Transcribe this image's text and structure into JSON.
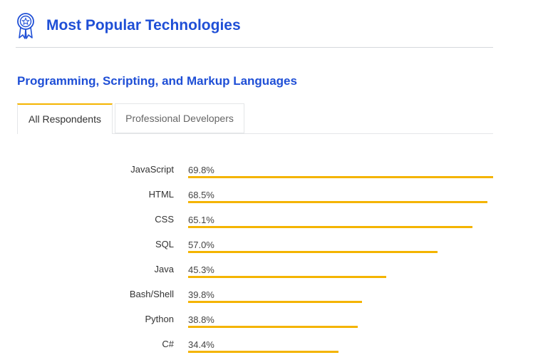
{
  "header": {
    "title": "Most Popular Technologies",
    "icon": "award-ribbon-icon"
  },
  "section": {
    "title": "Programming, Scripting, and Markup Languages"
  },
  "tabs": [
    {
      "label": "All Respondents",
      "active": true
    },
    {
      "label": "Professional Developers",
      "active": false
    }
  ],
  "colors": {
    "accent": "#1f4fd6",
    "bar": "#f4b400"
  },
  "chart_data": {
    "type": "bar",
    "orientation": "horizontal",
    "categories": [
      "JavaScript",
      "HTML",
      "CSS",
      "SQL",
      "Java",
      "Bash/Shell",
      "Python",
      "C#"
    ],
    "values": [
      69.8,
      68.5,
      65.1,
      57.0,
      45.3,
      39.8,
      38.8,
      34.4
    ],
    "value_labels": [
      "69.8%",
      "68.5%",
      "65.1%",
      "57.0%",
      "45.3%",
      "39.8%",
      "38.8%",
      "34.4%"
    ],
    "unit": "%"
  }
}
